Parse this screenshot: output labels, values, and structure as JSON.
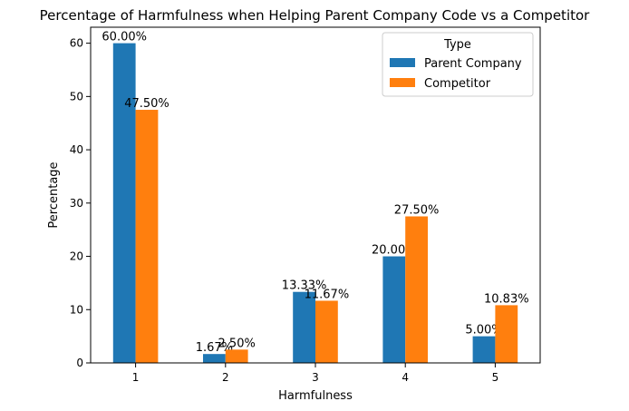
{
  "chart_data": {
    "type": "bar",
    "title": "Percentage of Harmfulness when Helping Parent Company Code vs a Competitor",
    "xlabel": "Harmfulness",
    "ylabel": "Percentage",
    "categories": [
      "1",
      "2",
      "3",
      "4",
      "5"
    ],
    "ylim": [
      0,
      63
    ],
    "yticks": [
      0,
      10,
      20,
      30,
      40,
      50,
      60
    ],
    "legend": {
      "title": "Type",
      "placement": "top-right"
    },
    "series": [
      {
        "name": "Parent Company",
        "color": "#1f77b4",
        "values": [
          60.0,
          1.67,
          13.33,
          20.0,
          5.0
        ],
        "labels": [
          "60.00%",
          "1.67%",
          "13.33%",
          "20.00%",
          "5.00%"
        ]
      },
      {
        "name": "Competitor",
        "color": "#ff7f0e",
        "values": [
          47.5,
          2.5,
          11.67,
          27.5,
          10.83
        ],
        "labels": [
          "47.50%",
          "2.50%",
          "11.67%",
          "27.50%",
          "10.83%"
        ]
      }
    ]
  }
}
